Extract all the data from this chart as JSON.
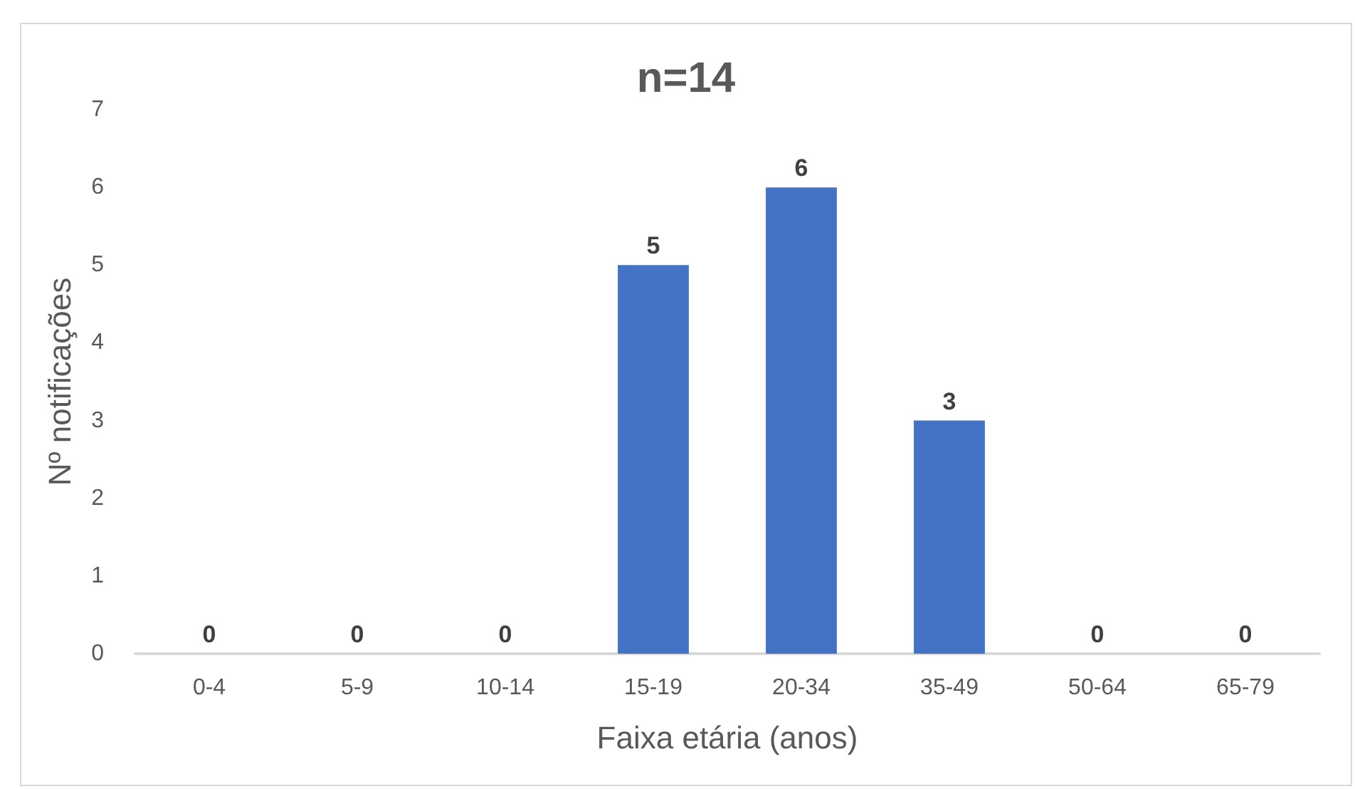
{
  "chart_data": {
    "type": "bar",
    "title": "n=14",
    "xlabel": "Faixa etária (anos)",
    "ylabel": "Nº notificações",
    "categories": [
      "0-4",
      "5-9",
      "10-14",
      "15-19",
      "20-34",
      "35-49",
      "50-64",
      "65-79"
    ],
    "values": [
      0,
      0,
      0,
      5,
      6,
      3,
      0,
      0
    ],
    "color": "#4472c4",
    "ylim": [
      0,
      7
    ],
    "yticks": [
      0,
      1,
      2,
      3,
      4,
      5,
      6,
      7
    ],
    "grid": false,
    "data_labels": true
  }
}
